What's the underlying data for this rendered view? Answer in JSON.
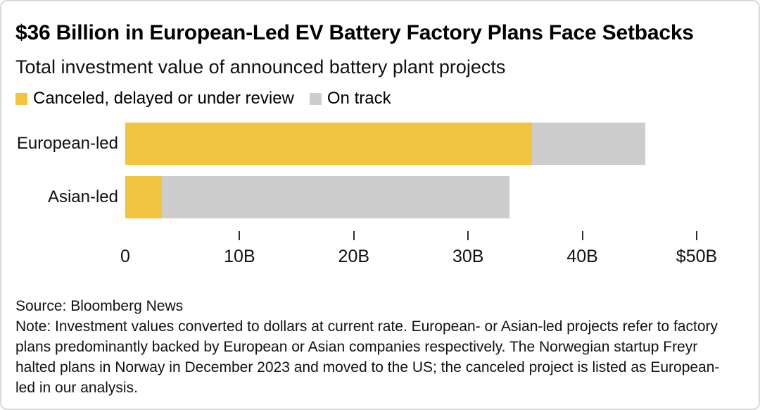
{
  "chart_data": {
    "type": "bar",
    "orientation": "horizontal",
    "stacked": true,
    "title": "$36 Billion in European-Led EV Battery Factory Plans Face Setbacks",
    "subtitle": "Total investment value of announced battery plant projects",
    "categories": [
      "European-led",
      "Asian-led"
    ],
    "series": [
      {
        "key": "canceled",
        "name": "Canceled, delayed or under review",
        "color": "#F3C43F",
        "values": [
          35.6,
          3.2
        ]
      },
      {
        "key": "on-track",
        "name": "On track",
        "color": "#CDCDCD",
        "values": [
          9.9,
          30.4
        ]
      }
    ],
    "totals": [
      45.5,
      33.6
    ],
    "xlim": [
      0,
      50
    ],
    "x_ticks": [
      {
        "value": 0,
        "label": "0"
      },
      {
        "value": 10,
        "label": "10B"
      },
      {
        "value": 20,
        "label": "20B"
      },
      {
        "value": 30,
        "label": "30B"
      },
      {
        "value": 40,
        "label": "40B"
      },
      {
        "value": 50,
        "label": "$50B"
      }
    ],
    "grid": false,
    "legend_position": "top",
    "source": "Source: Bloomberg News",
    "note": "Note: Investment values converted to dollars at current rate. European- or Asian-led projects refer to factory plans predominantly backed by European or Asian companies respectively. The Norwegian startup Freyr halted plans in Norway in December 2023 and moved to the US; the canceled project is listed as European-led in our analysis."
  },
  "colors": {
    "canceled": "#F3C43F",
    "on_track": "#CDCDCD",
    "border": "#D9D9D9",
    "text": "#000000",
    "background": "#FFFFFF"
  }
}
